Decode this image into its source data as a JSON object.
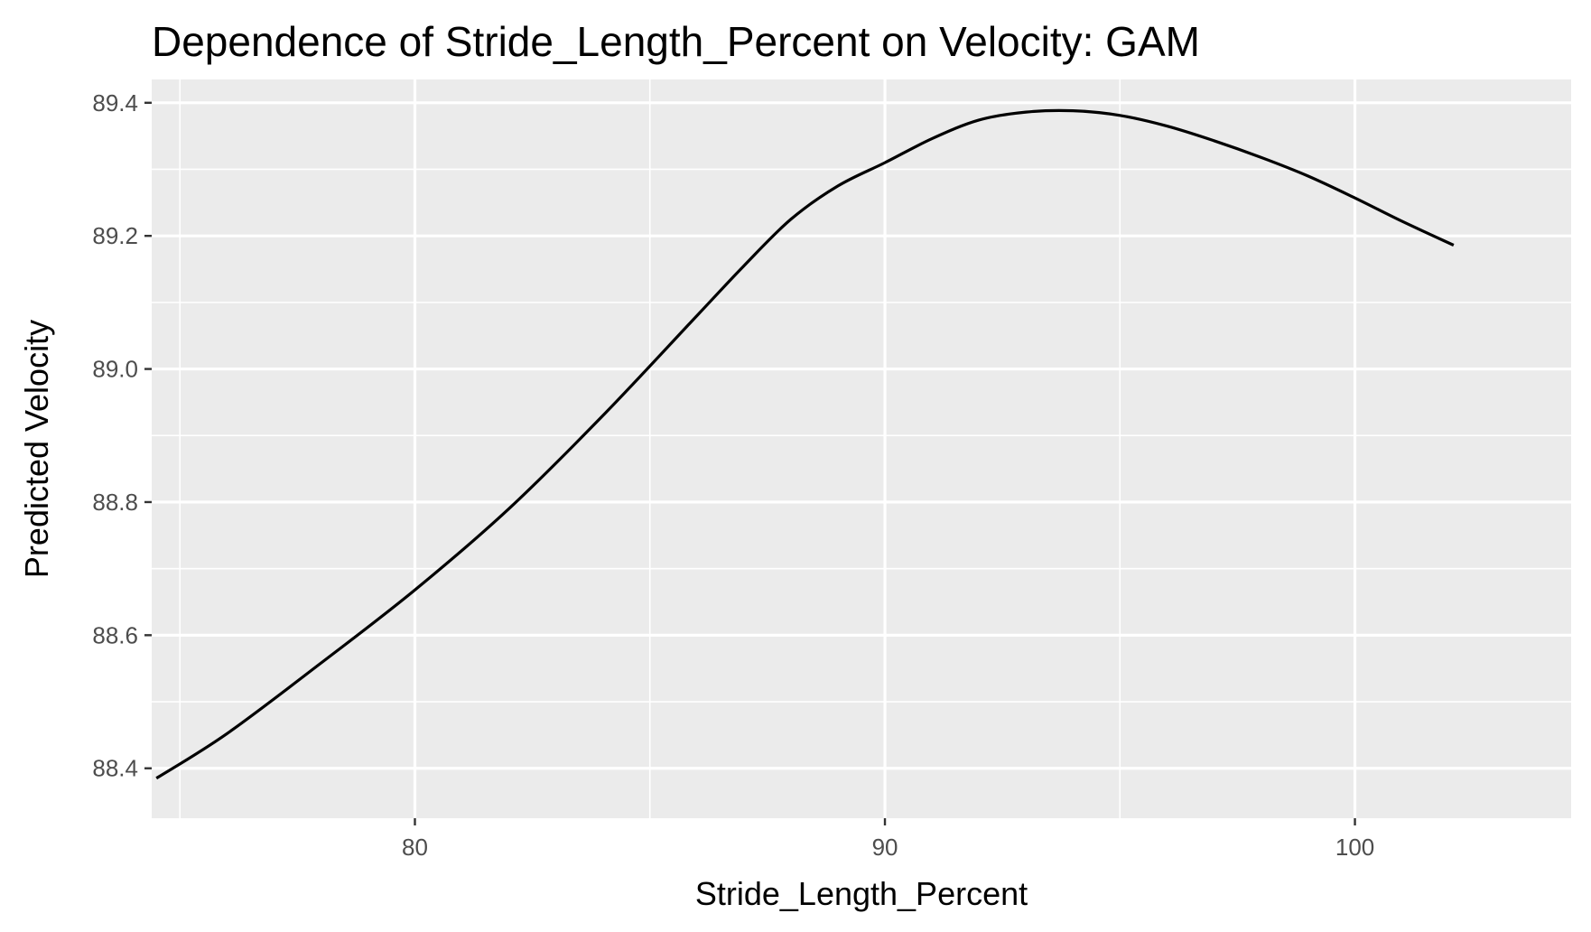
{
  "chart_data": {
    "type": "line",
    "title": "Dependence of Stride_Length_Percent on Velocity: GAM",
    "xlabel": "Stride_Length_Percent",
    "ylabel": "Predicted Velocity",
    "xlim": [
      74.4,
      104.6
    ],
    "ylim": [
      88.325,
      89.435
    ],
    "x_ticks": [
      80,
      90,
      100
    ],
    "x_tick_labels": [
      "80",
      "90",
      "100"
    ],
    "x_minor_ticks": [
      75,
      85,
      95
    ],
    "y_ticks": [
      88.4,
      88.6,
      88.8,
      89.0,
      89.2,
      89.4
    ],
    "y_tick_labels": [
      "88.4",
      "88.6",
      "88.8",
      "89.0",
      "89.2",
      "89.4"
    ],
    "y_minor_ticks": [
      88.5,
      88.7,
      88.9,
      89.1,
      89.3
    ],
    "grid": true,
    "legend": "none",
    "colors": {
      "panel": "#ebebeb",
      "grid": "#ffffff",
      "line": "#000000"
    },
    "series": [
      {
        "x": [
          74.5,
          76,
          78,
          80,
          82,
          84,
          86,
          87,
          88,
          89,
          90,
          91,
          92,
          93,
          94,
          95,
          96,
          97,
          98,
          99,
          100,
          101,
          102.1
        ],
        "y": [
          88.385,
          88.452,
          88.558,
          88.668,
          88.79,
          88.93,
          89.08,
          89.155,
          89.225,
          89.275,
          89.31,
          89.346,
          89.374,
          89.386,
          89.388,
          89.381,
          89.365,
          89.343,
          89.318,
          89.29,
          89.257,
          89.222,
          89.186
        ]
      }
    ]
  }
}
